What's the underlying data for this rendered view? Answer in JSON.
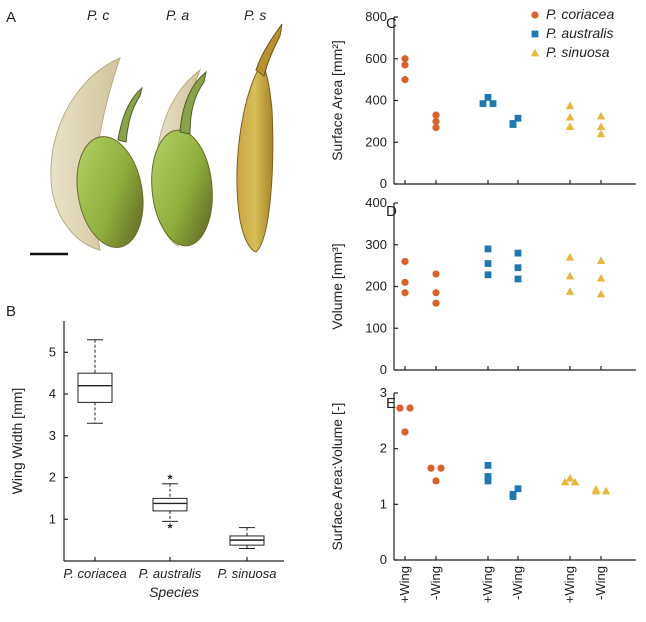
{
  "panel_a": {
    "letter": "A",
    "species_labels": [
      "P. c",
      "P. a",
      "P. s"
    ]
  },
  "legend": {
    "items": [
      {
        "name": "P. coriacea",
        "color": "#d9622b",
        "marker": "circle"
      },
      {
        "name": "P. australis",
        "color": "#1f77b4",
        "marker": "square"
      },
      {
        "name": "P. sinuosa",
        "color": "#e8b83a",
        "marker": "triangle"
      }
    ]
  },
  "chart_data": [
    {
      "panel": "B",
      "type": "box",
      "xlabel": "Species",
      "ylabel": "Wing Width [mm]",
      "ylim": [
        0,
        5.75
      ],
      "yticks": [
        1,
        2,
        3,
        4,
        5
      ],
      "categories": [
        "P. coriacea",
        "P. australis",
        "P. sinuosa"
      ],
      "boxes": [
        {
          "min": 3.3,
          "q1": 3.8,
          "median": 4.2,
          "q3": 4.5,
          "max": 5.3,
          "outliers": []
        },
        {
          "min": 0.95,
          "q1": 1.2,
          "median": 1.38,
          "q3": 1.5,
          "max": 1.85,
          "outliers": [
            0.8,
            1.98
          ]
        },
        {
          "min": 0.3,
          "q1": 0.38,
          "median": 0.5,
          "q3": 0.6,
          "max": 0.8,
          "outliers": []
        }
      ]
    },
    {
      "panel": "C",
      "type": "scatter",
      "ylabel": "Surface Area [mm²]",
      "ylim": [
        0,
        800
      ],
      "yticks": [
        0,
        200,
        400,
        600,
        800
      ],
      "categories": [
        "+Wing",
        "-Wing",
        "+Wing",
        "-Wing",
        "+Wing",
        "-Wing"
      ],
      "series": [
        {
          "name": "P. coriacea",
          "groups": [
            [
              600,
              570,
              500
            ],
            [
              330,
              300,
              270
            ]
          ]
        },
        {
          "name": "P. australis",
          "groups": [
            [
              415,
              385,
              385
            ],
            [
              315,
              290,
              285
            ]
          ]
        },
        {
          "name": "P. sinuosa",
          "groups": [
            [
              375,
              320,
              275
            ],
            [
              325,
              275,
              240
            ]
          ]
        }
      ]
    },
    {
      "panel": "D",
      "type": "scatter",
      "ylabel": "Volume [mm³]",
      "ylim": [
        0,
        400
      ],
      "yticks": [
        0,
        100,
        200,
        300,
        400
      ],
      "categories": [
        "+Wing",
        "-Wing",
        "+Wing",
        "-Wing",
        "+Wing",
        "-Wing"
      ],
      "series": [
        {
          "name": "P. coriacea",
          "groups": [
            [
              260,
              210,
              185
            ],
            [
              230,
              185,
              160
            ]
          ]
        },
        {
          "name": "P. australis",
          "groups": [
            [
              290,
              255,
              228
            ],
            [
              280,
              245,
              218
            ]
          ]
        },
        {
          "name": "P. sinuosa",
          "groups": [
            [
              270,
              225,
              188
            ],
            [
              262,
              220,
              182
            ]
          ]
        }
      ]
    },
    {
      "panel": "E",
      "type": "scatter",
      "ylabel": "Surface Area:Volume [-]",
      "ylim": [
        0,
        3
      ],
      "yticks": [
        0,
        1,
        2,
        3
      ],
      "categories": [
        "+Wing",
        "-Wing",
        "+Wing",
        "-Wing",
        "+Wing",
        "-Wing"
      ],
      "series": [
        {
          "name": "P. coriacea",
          "groups": [
            [
              2.73,
              2.73,
              2.3
            ],
            [
              1.65,
              1.65,
              1.42
            ]
          ]
        },
        {
          "name": "P. australis",
          "groups": [
            [
              1.7,
              1.5,
              1.42
            ],
            [
              1.28,
              1.18,
              1.14
            ]
          ]
        },
        {
          "name": "P. sinuosa",
          "groups": [
            [
              1.47,
              1.4,
              1.4
            ],
            [
              1.27,
              1.24,
              1.24
            ]
          ]
        }
      ]
    }
  ]
}
